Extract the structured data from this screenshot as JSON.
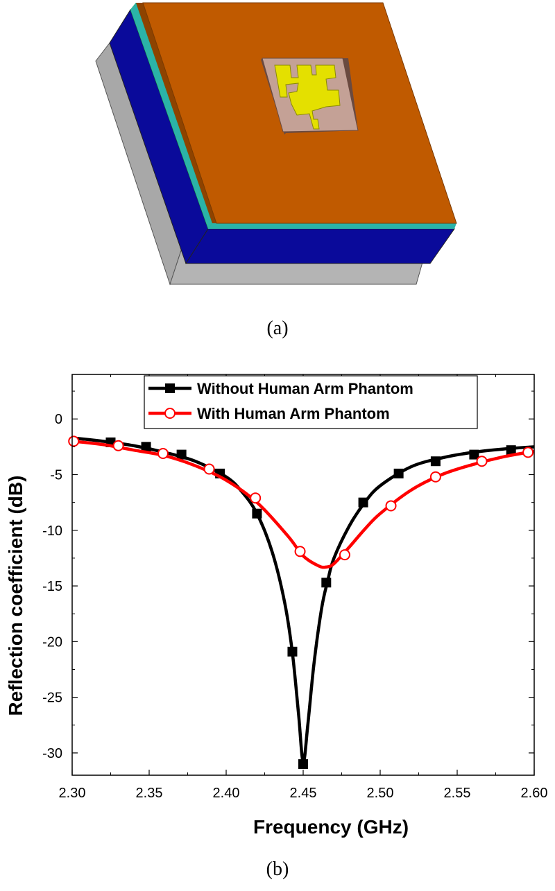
{
  "figure_a": {
    "caption": "(a)",
    "colors": {
      "top_copper": "#C05A00",
      "top_left_edge": "#8E4300",
      "dielectric_teal": "#2BB3A8",
      "substrate_blue": "#0A0A9A",
      "base_gray": "#A8A8A8",
      "patch_pad": "#C4A196",
      "antenna_yellow": "#E4E000"
    }
  },
  "figure_b": {
    "caption": "(b)",
    "chart_data": {
      "type": "line",
      "xlabel": "Frequency (GHz)",
      "ylabel": "Reflection coefficient (dB)",
      "xlim": [
        2.3,
        2.6
      ],
      "ylim": [
        -32,
        4
      ],
      "x_ticks": [
        2.3,
        2.35,
        2.4,
        2.45,
        2.5,
        2.55,
        2.6
      ],
      "x_tick_labels": [
        "2.30",
        "2.35",
        "2.40",
        "2.45",
        "2.50",
        "2.55",
        "2.60"
      ],
      "y_ticks": [
        0,
        -5,
        -10,
        -15,
        -20,
        -25,
        -30
      ],
      "y_tick_labels": [
        "0",
        "-5",
        "-10",
        "-15",
        "-20",
        "-25",
        "-30"
      ],
      "legend_position": "top-center",
      "series": [
        {
          "name": "Without Human Arm Phantom",
          "color": "#000000",
          "marker": "square",
          "x": [
            2.3,
            2.32,
            2.34,
            2.36,
            2.38,
            2.4,
            2.41,
            2.42,
            2.43,
            2.438,
            2.443,
            2.447,
            2.45,
            2.453,
            2.457,
            2.462,
            2.466,
            2.47,
            2.48,
            2.49,
            2.5,
            2.52,
            2.54,
            2.56,
            2.58,
            2.6
          ],
          "values": [
            -1.7,
            -2.0,
            -2.4,
            -3.0,
            -3.8,
            -5.2,
            -6.5,
            -8.5,
            -12.0,
            -16.5,
            -21.0,
            -26.5,
            -30.8,
            -27.5,
            -22.0,
            -17.0,
            -14.5,
            -12.5,
            -9.6,
            -7.5,
            -6.0,
            -4.3,
            -3.5,
            -3.0,
            -2.7,
            -2.5
          ],
          "marker_x": [
            2.325,
            2.348,
            2.371,
            2.396,
            2.42,
            2.443,
            2.45,
            2.465,
            2.489,
            2.512,
            2.536,
            2.561,
            2.585
          ],
          "marker_values": [
            -2.1,
            -2.5,
            -3.2,
            -4.9,
            -8.5,
            -20.9,
            -31.0,
            -14.7,
            -7.5,
            -4.9,
            -3.8,
            -3.2,
            -2.8
          ]
        },
        {
          "name": "With Human Arm Phantom",
          "color": "#FF0000",
          "marker": "circle",
          "x": [
            2.3,
            2.32,
            2.34,
            2.36,
            2.38,
            2.4,
            2.42,
            2.44,
            2.45,
            2.46,
            2.465,
            2.47,
            2.48,
            2.49,
            2.5,
            2.52,
            2.54,
            2.56,
            2.58,
            2.6
          ],
          "values": [
            -2.0,
            -2.3,
            -2.8,
            -3.3,
            -4.2,
            -5.5,
            -7.5,
            -10.5,
            -12.3,
            -13.2,
            -13.3,
            -13.0,
            -11.5,
            -9.9,
            -8.5,
            -6.4,
            -5.0,
            -4.1,
            -3.4,
            -2.9
          ],
          "marker_x": [
            2.301,
            2.33,
            2.359,
            2.389,
            2.419,
            2.448,
            2.477,
            2.507,
            2.536,
            2.566,
            2.596
          ],
          "marker_values": [
            -2.0,
            -2.4,
            -3.1,
            -4.5,
            -7.1,
            -11.9,
            -12.2,
            -7.8,
            -5.2,
            -3.8,
            -3.0
          ]
        }
      ]
    }
  }
}
